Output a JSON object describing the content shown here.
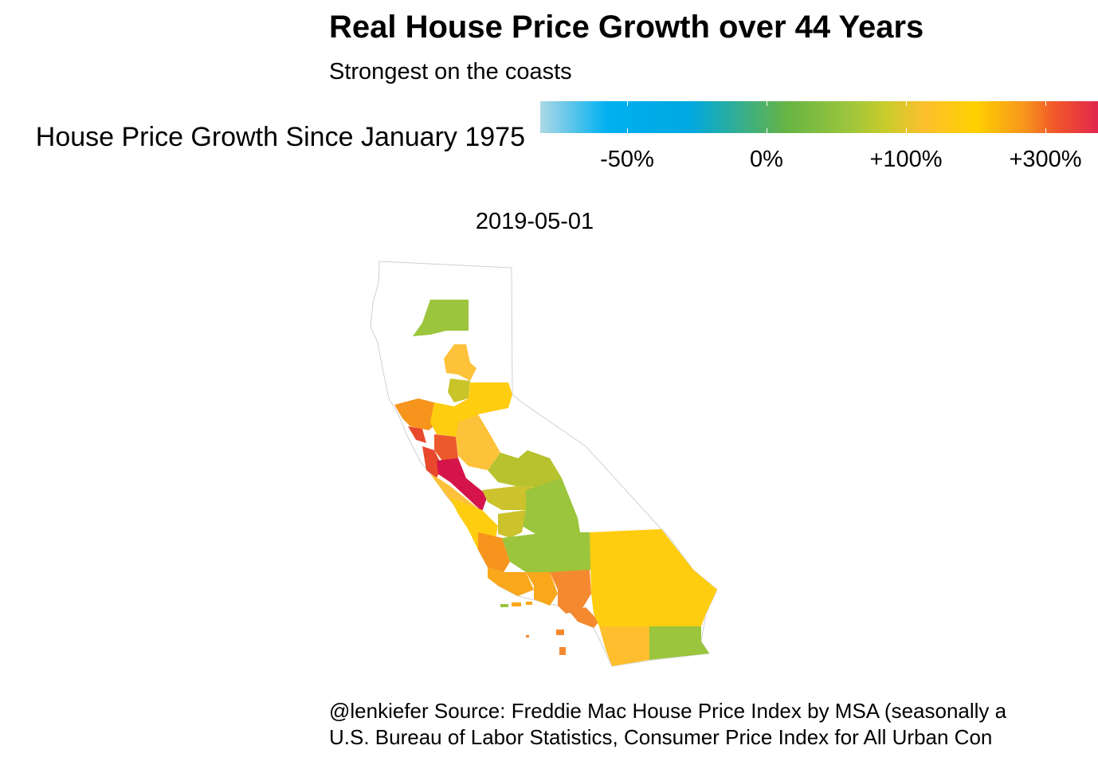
{
  "title": "Real House Price Growth over 44 Years",
  "subtitle": "Strongest on the coasts",
  "legend": {
    "title": "House Price Growth Since January 1975",
    "labels": [
      "-50%",
      "0%",
      "+100%",
      "+300%"
    ]
  },
  "date_label": "2019-05-01",
  "caption": {
    "line1": "@lenkiefer Source: Freddie Mac House Price Index by MSA (seasonally a",
    "line2": "U.S. Bureau of Labor Statistics, Consumer Price Index for All Urban Con"
  },
  "colors": {
    "low": "#add8e6",
    "blue": "#00b0f0",
    "green": "#9bc53d",
    "yellow": "#ffd100",
    "orange": "#f7941d",
    "red": "#e2264d",
    "outline": "#d0d0d0"
  }
}
